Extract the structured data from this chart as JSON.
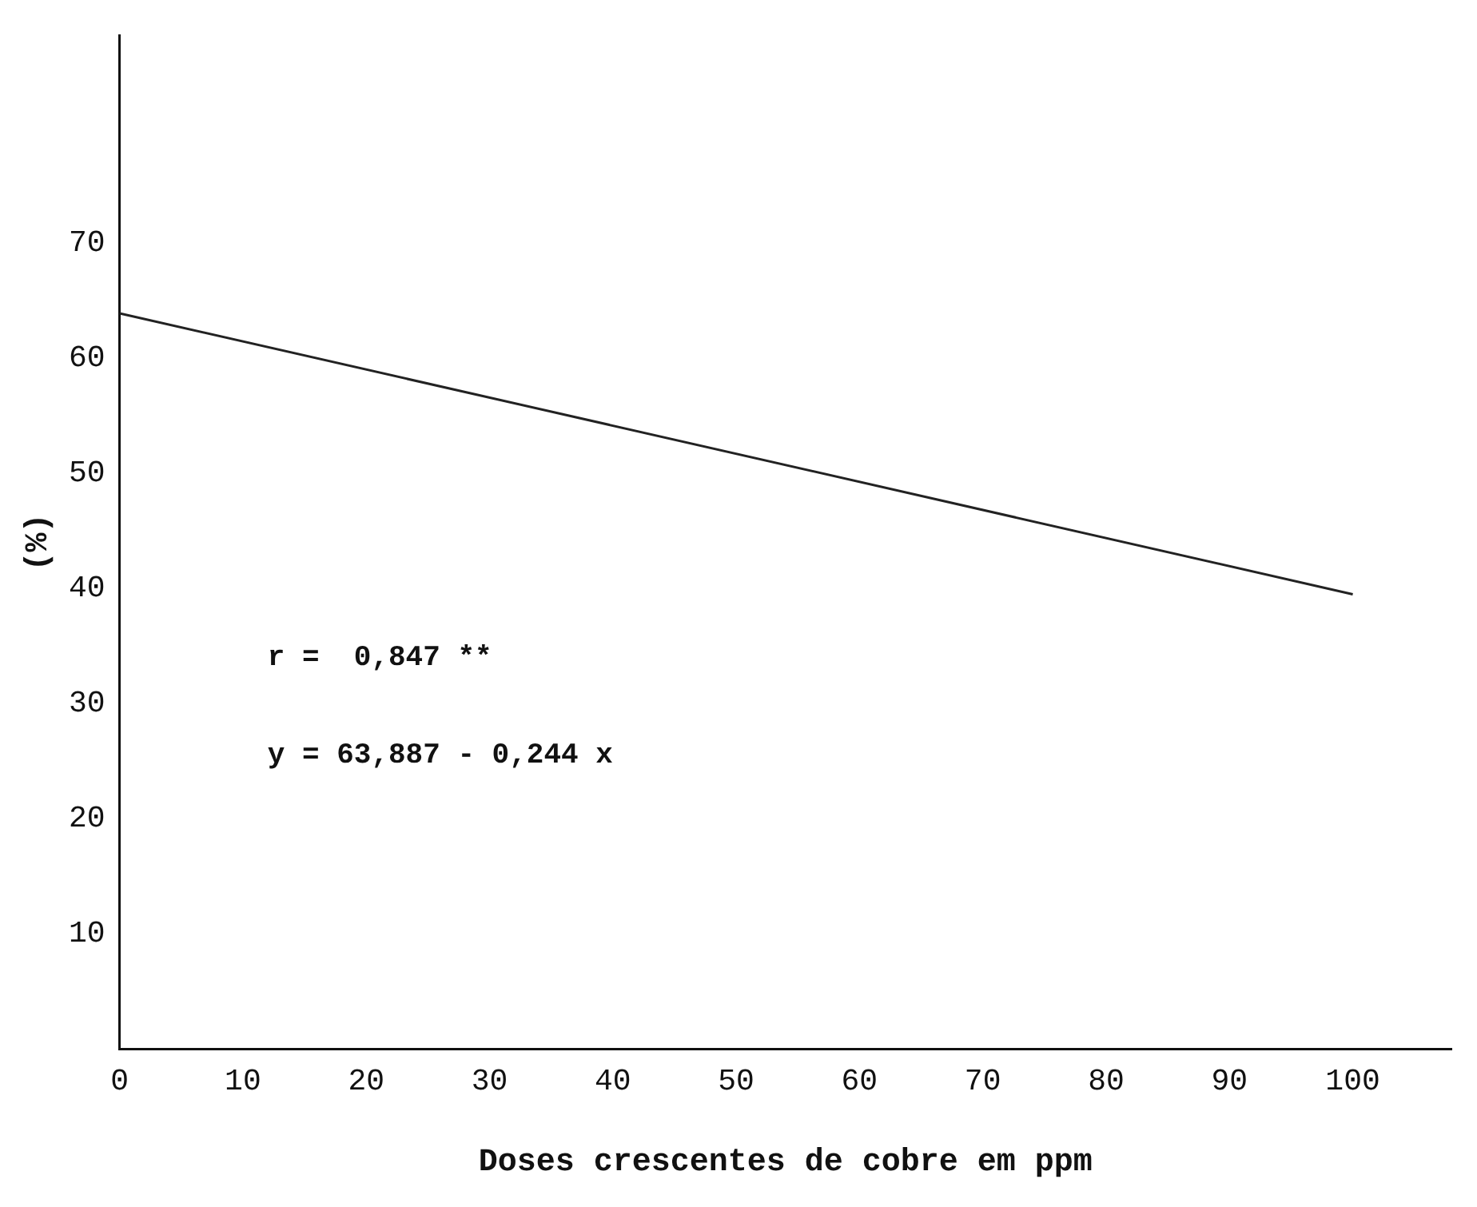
{
  "chart_data": {
    "type": "line",
    "xlabel": "Doses crescentes de cobre em ppm",
    "ylabel": "(%)",
    "x": [
      0,
      100
    ],
    "series": [
      {
        "color": "#222222",
        "values": [
          63.9,
          39.5
        ]
      }
    ],
    "xlim": [
      0,
      108
    ],
    "ylim": [
      0,
      88
    ],
    "xticks": [
      0,
      10,
      20,
      30,
      40,
      50,
      60,
      70,
      80,
      90,
      100
    ],
    "yticks": [
      10,
      20,
      30,
      40,
      50,
      60,
      70
    ],
    "annotations": [
      "r =  0,847 **",
      "y = 63,887 - 0,244 x"
    ],
    "grid": false,
    "legend": false,
    "marker": "none",
    "line_style": "solid"
  }
}
